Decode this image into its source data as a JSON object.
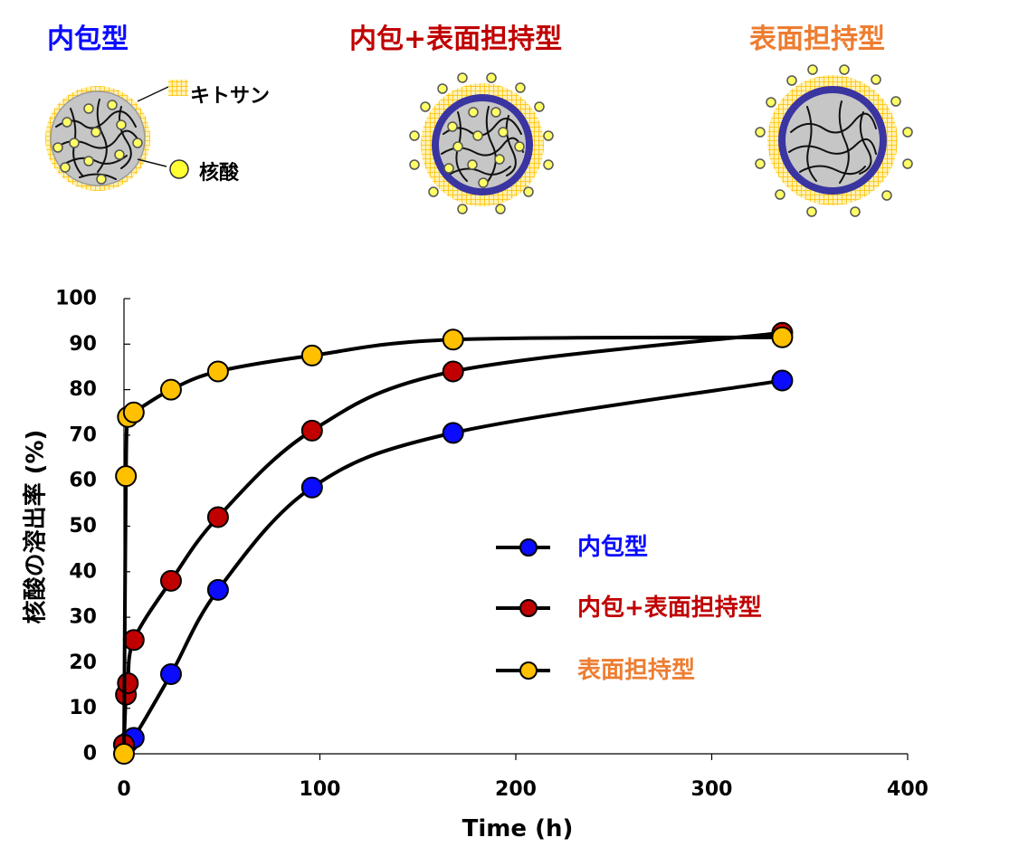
{
  "top": {
    "titles": [
      {
        "text": "内包型",
        "color": "#0b0bff"
      },
      {
        "text": "内包+表面担持型",
        "color": "#c00000"
      },
      {
        "text": "表面担持型",
        "color": "#ed7d31"
      }
    ],
    "chitosan_label": "キトサン",
    "nucleic_label": "核酸"
  },
  "colors": {
    "blue": "#0b0bff",
    "red": "#c00000",
    "yellow": "#ffc000",
    "shell": "#3a35a0",
    "core": "#c6c6c6",
    "chitosan": "#ffc000",
    "dot": "#ffff66"
  },
  "chart_data": {
    "type": "line",
    "xlabel": "Time (h)",
    "ylabel": "核酸の溶出率 (%)",
    "xlim": [
      0,
      400
    ],
    "ylim": [
      0,
      100
    ],
    "xticks": [
      0,
      100,
      200,
      300,
      400
    ],
    "yticks": [
      0,
      10,
      20,
      30,
      40,
      50,
      60,
      70,
      80,
      90,
      100
    ],
    "grid": false,
    "legend_position": "center-right",
    "series": [
      {
        "name": "内包型",
        "color": "#0b0bff",
        "x": [
          0,
          2,
          5,
          24,
          48,
          96,
          168,
          336
        ],
        "y": [
          2,
          2.5,
          3.5,
          17.5,
          36,
          58.5,
          70.5,
          82
        ]
      },
      {
        "name": "内包+表面担持型",
        "color": "#c00000",
        "x": [
          0,
          1,
          2,
          5,
          24,
          48,
          96,
          168,
          336
        ],
        "y": [
          2,
          13,
          15.5,
          25,
          38,
          52,
          71,
          84,
          92.5
        ]
      },
      {
        "name": "表面担持型",
        "color": "#ffc000",
        "x": [
          0,
          1,
          2,
          5,
          24,
          48,
          96,
          168,
          336
        ],
        "y": [
          0,
          61,
          74,
          75,
          80,
          84,
          87.5,
          91,
          91.5
        ]
      }
    ]
  }
}
